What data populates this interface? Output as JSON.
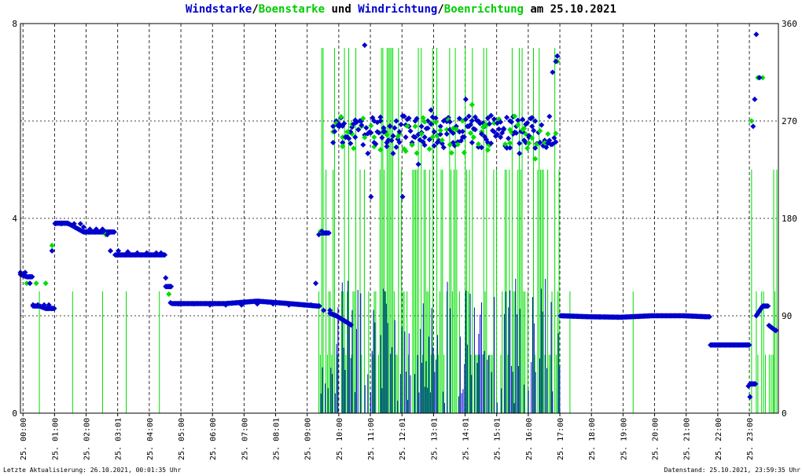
{
  "title": {
    "part1": "Windstarke",
    "sep1": "/",
    "part2": "Boenstarke",
    "part3": " und ",
    "part4": "Windrichtung",
    "sep2": "/",
    "part5": "Boenrichtung",
    "part6": " am 25.10.2021"
  },
  "footer": {
    "left": "Letzte Aktualisierung: 26.10.2021, 00:01:35 Uhr",
    "right": "Datenstand: 25.10.2021, 23:59:35 Uhr"
  },
  "colors": {
    "wind": "#0000cc",
    "gust": "#00dd00",
    "grid": "#000000"
  },
  "chart_data": {
    "type": "scatter",
    "title": "Windstarke/Boenstarke und Windrichtung/Boenrichtung am 25.10.2021",
    "x_ticks": [
      {
        "h": 0.08,
        "label": "25. 00:00"
      },
      {
        "h": 1.08,
        "label": "25. 01:00"
      },
      {
        "h": 2.08,
        "label": "25. 02:00"
      },
      {
        "h": 3.08,
        "label": "25. 03:01"
      },
      {
        "h": 4.08,
        "label": "25. 04:00"
      },
      {
        "h": 5.08,
        "label": "25. 05:00"
      },
      {
        "h": 6.08,
        "label": "25. 06:00"
      },
      {
        "h": 7.08,
        "label": "25. 07:00"
      },
      {
        "h": 8.08,
        "label": "25. 08:01"
      },
      {
        "h": 9.08,
        "label": "25. 09:00"
      },
      {
        "h": 10.08,
        "label": "25. 10:00"
      },
      {
        "h": 11.08,
        "label": "25. 11:00"
      },
      {
        "h": 12.08,
        "label": "25. 12:01"
      },
      {
        "h": 13.08,
        "label": "25. 13:01"
      },
      {
        "h": 14.08,
        "label": "25. 14:01"
      },
      {
        "h": 15.08,
        "label": "25. 15:01"
      },
      {
        "h": 16.08,
        "label": "25. 16:00"
      },
      {
        "h": 17.08,
        "label": "25. 17:00"
      },
      {
        "h": 18.08,
        "label": "25. 18:00"
      },
      {
        "h": 19.08,
        "label": "25. 19:00"
      },
      {
        "h": 20.08,
        "label": "25. 20:00"
      },
      {
        "h": 21.08,
        "label": "25. 21:00"
      },
      {
        "h": 22.08,
        "label": "25. 22:00"
      },
      {
        "h": 23.08,
        "label": "25. 23:00"
      }
    ],
    "x_range_hours": [
      0,
      24
    ],
    "y_left": {
      "min": 0,
      "max": 8,
      "ticks": [
        "0",
        "4",
        "8"
      ]
    },
    "y_right": {
      "min": 0,
      "max": 360,
      "ticks": [
        "0",
        "90",
        "180",
        "270",
        "360"
      ]
    },
    "grid": true,
    "direction_wind": [
      [
        0.0,
        130
      ],
      [
        0.15,
        130
      ],
      [
        0.3,
        120
      ],
      [
        0.4,
        100
      ],
      [
        0.55,
        100
      ],
      [
        0.75,
        100
      ],
      [
        0.9,
        100
      ],
      [
        1.0,
        150
      ],
      [
        1.1,
        175
      ],
      [
        1.3,
        175
      ],
      [
        1.5,
        175
      ],
      [
        1.7,
        175
      ],
      [
        1.9,
        175
      ],
      [
        2.0,
        172
      ],
      [
        2.2,
        170
      ],
      [
        2.4,
        170
      ],
      [
        2.6,
        170
      ],
      [
        2.75,
        165
      ],
      [
        2.85,
        150
      ],
      [
        3.1,
        150
      ],
      [
        3.4,
        149
      ],
      [
        3.7,
        148
      ],
      [
        4.0,
        148
      ],
      [
        4.3,
        148
      ],
      [
        4.45,
        148
      ],
      [
        4.6,
        125
      ],
      [
        4.75,
        102
      ],
      [
        5.0,
        101
      ],
      [
        5.5,
        101
      ],
      [
        6.0,
        100
      ],
      [
        6.5,
        100
      ],
      [
        7.0,
        100
      ],
      [
        7.5,
        101
      ],
      [
        8.0,
        101
      ],
      [
        8.5,
        100
      ],
      [
        9.0,
        100
      ],
      [
        9.2,
        100
      ],
      [
        9.35,
        120
      ],
      [
        9.45,
        165
      ],
      [
        9.55,
        168
      ],
      [
        9.6,
        95
      ],
      [
        9.8,
        95
      ],
      [
        9.9,
        265
      ],
      [
        10.0,
        270
      ],
      [
        10.1,
        265
      ],
      [
        10.2,
        250
      ],
      [
        10.3,
        255
      ],
      [
        10.45,
        260
      ],
      [
        10.6,
        255
      ],
      [
        10.7,
        262
      ],
      [
        10.8,
        270
      ],
      [
        10.9,
        340
      ],
      [
        11.0,
        240
      ],
      [
        11.1,
        200
      ],
      [
        11.2,
        250
      ],
      [
        11.3,
        260
      ],
      [
        11.4,
        270
      ],
      [
        11.5,
        260
      ],
      [
        11.6,
        250
      ],
      [
        11.7,
        265
      ],
      [
        11.8,
        240
      ],
      [
        11.9,
        270
      ],
      [
        12.0,
        260
      ],
      [
        12.1,
        200
      ],
      [
        12.2,
        255
      ],
      [
        12.3,
        265
      ],
      [
        12.4,
        250
      ],
      [
        12.5,
        270
      ],
      [
        12.6,
        230
      ],
      [
        12.7,
        265
      ],
      [
        12.8,
        255
      ],
      [
        12.9,
        270
      ],
      [
        13.0,
        280
      ],
      [
        13.1,
        260
      ],
      [
        13.2,
        250
      ],
      [
        13.3,
        265
      ],
      [
        13.4,
        270
      ],
      [
        13.5,
        258
      ],
      [
        13.6,
        262
      ],
      [
        13.7,
        250
      ],
      [
        13.8,
        265
      ],
      [
        13.9,
        260
      ],
      [
        14.0,
        255
      ],
      [
        14.1,
        290
      ],
      [
        14.2,
        265
      ],
      [
        14.3,
        250
      ],
      [
        14.4,
        262
      ],
      [
        14.5,
        270
      ],
      [
        14.6,
        258
      ],
      [
        14.7,
        265
      ],
      [
        14.8,
        250
      ],
      [
        14.9,
        275
      ],
      [
        15.0,
        260
      ],
      [
        15.1,
        268
      ],
      [
        15.2,
        255
      ],
      [
        15.3,
        262
      ],
      [
        15.4,
        245
      ],
      [
        15.5,
        270
      ],
      [
        15.6,
        258
      ],
      [
        15.7,
        265
      ],
      [
        15.8,
        240
      ],
      [
        15.9,
        260
      ],
      [
        16.0,
        250
      ],
      [
        16.1,
        255
      ],
      [
        16.2,
        265
      ],
      [
        16.3,
        245
      ],
      [
        16.45,
        250
      ],
      [
        16.6,
        252
      ],
      [
        16.75,
        252
      ],
      [
        16.85,
        315
      ],
      [
        16.95,
        325
      ],
      [
        17.0,
        330
      ]
    ],
    "direction_gust": [
      [
        0.2,
        120
      ],
      [
        0.5,
        120
      ],
      [
        0.8,
        120
      ],
      [
        1.0,
        155
      ],
      [
        2.7,
        165
      ],
      [
        4.7,
        110
      ],
      [
        9.5,
        168
      ],
      [
        9.9,
        260
      ],
      [
        10.2,
        255
      ],
      [
        10.5,
        258
      ],
      [
        10.8,
        265
      ],
      [
        11.2,
        255
      ],
      [
        11.5,
        262
      ],
      [
        12.0,
        258
      ],
      [
        12.5,
        265
      ],
      [
        13.0,
        268
      ],
      [
        13.5,
        262
      ],
      [
        14.0,
        270
      ],
      [
        14.3,
        285
      ],
      [
        14.6,
        260
      ],
      [
        15.0,
        268
      ],
      [
        15.5,
        262
      ],
      [
        16.0,
        258
      ],
      [
        16.3,
        235
      ],
      [
        16.7,
        258
      ],
      [
        17.0,
        325
      ],
      [
        23.15,
        270
      ],
      [
        23.35,
        310
      ],
      [
        23.5,
        310
      ]
    ],
    "wind_speed_blue": [
      [
        0.0,
        2.85
      ],
      [
        0.2,
        2.8
      ],
      [
        0.4,
        2.2
      ],
      [
        0.6,
        2.2
      ],
      [
        0.8,
        2.15
      ],
      [
        1.1,
        3.9
      ],
      [
        1.5,
        3.9
      ],
      [
        2.0,
        3.72
      ],
      [
        2.5,
        3.72
      ],
      [
        3.0,
        3.25
      ],
      [
        3.5,
        3.25
      ],
      [
        4.0,
        3.25
      ],
      [
        4.45,
        3.25
      ],
      [
        4.6,
        2.6
      ],
      [
        4.8,
        2.25
      ],
      [
        5.5,
        2.25
      ],
      [
        6.5,
        2.25
      ],
      [
        7.5,
        2.3
      ],
      [
        8.5,
        2.25
      ],
      [
        9.4,
        2.2
      ],
      [
        9.5,
        3.7
      ],
      [
        9.7,
        3.7
      ],
      [
        9.8,
        2.05
      ],
      [
        10.0,
        2.0
      ],
      [
        10.5,
        1.8
      ],
      [
        17.1,
        2.0
      ],
      [
        18.0,
        1.98
      ],
      [
        19.0,
        1.97
      ],
      [
        20.0,
        2.0
      ],
      [
        21.0,
        2.0
      ],
      [
        21.7,
        1.98
      ],
      [
        21.85,
        1.4
      ],
      [
        22.5,
        1.4
      ],
      [
        23.05,
        1.4
      ],
      [
        23.1,
        0.6
      ],
      [
        23.3,
        2.0
      ],
      [
        23.5,
        2.2
      ],
      [
        23.7,
        1.8
      ],
      [
        23.9,
        1.7
      ],
      [
        23.95,
        1.1
      ]
    ],
    "gust_bars": {
      "series_note": "",
      "lines": []
    }
  }
}
